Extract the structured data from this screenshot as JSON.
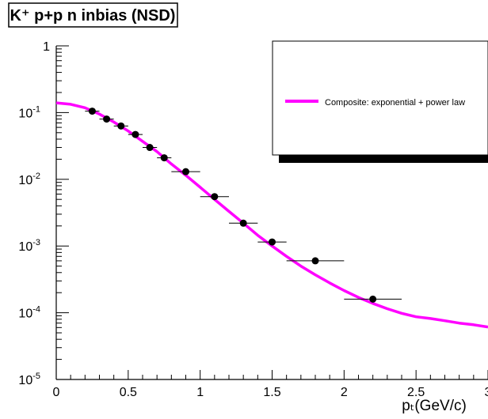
{
  "chart_data": {
    "type": "scatter",
    "title": "K⁺ p+p n inbias (NSD)",
    "xlabel": "pₜ(GeV/c)",
    "ylabel": "",
    "xlim": [
      0,
      3
    ],
    "ylim": [
      1e-05,
      1
    ],
    "y_scale": "log",
    "x_ticks": [
      0,
      0.5,
      1,
      1.5,
      2,
      2.5,
      3
    ],
    "x_tick_labels": [
      "0",
      "0.5",
      "1",
      "1.5",
      "2",
      "2.5",
      "3"
    ],
    "y_ticks": [
      1,
      0.1,
      0.01,
      0.001,
      0.0001,
      1e-05
    ],
    "y_tick_labels": [
      {
        "base": "1",
        "exp": ""
      },
      {
        "base": "10",
        "exp": "-1"
      },
      {
        "base": "10",
        "exp": "-2"
      },
      {
        "base": "10",
        "exp": "-3"
      },
      {
        "base": "10",
        "exp": "-4"
      },
      {
        "base": "10",
        "exp": "-5"
      }
    ],
    "grid": false,
    "legend_position": "top-right",
    "series": [
      {
        "name": "",
        "kind": "points",
        "color": "#000000",
        "x": [
          0.25,
          0.35,
          0.45,
          0.55,
          0.65,
          0.75,
          0.9,
          1.1,
          1.3,
          1.5,
          1.8,
          2.2
        ],
        "x_err": [
          0.05,
          0.05,
          0.05,
          0.05,
          0.05,
          0.05,
          0.1,
          0.1,
          0.1,
          0.1,
          0.2,
          0.2
        ],
        "y": [
          0.105,
          0.08,
          0.063,
          0.047,
          0.03,
          0.021,
          0.013,
          0.0055,
          0.0022,
          0.00115,
          0.0006,
          0.00016
        ]
      },
      {
        "name": "Composite: exponential + power law",
        "kind": "line",
        "color": "#ff00ff",
        "x": [
          0,
          0.1,
          0.2,
          0.3,
          0.4,
          0.5,
          0.6,
          0.7,
          0.8,
          0.9,
          1.0,
          1.1,
          1.2,
          1.3,
          1.4,
          1.5,
          1.6,
          1.7,
          1.8,
          1.9,
          2.0,
          2.1,
          2.2,
          2.3,
          2.4,
          2.5,
          2.6,
          2.7,
          2.8,
          2.9,
          3.0
        ],
        "y": [
          0.14,
          0.133,
          0.118,
          0.095,
          0.072,
          0.053,
          0.037,
          0.026,
          0.017,
          0.0115,
          0.0076,
          0.005,
          0.0033,
          0.0022,
          0.00145,
          0.001,
          0.0007,
          0.0005,
          0.00037,
          0.00028,
          0.000215,
          0.00017,
          0.000138,
          0.000115,
          9.8e-05,
          8.7e-05,
          8.2e-05,
          7.6e-05,
          7e-05,
          6.6e-05,
          6.1e-05
        ]
      }
    ]
  }
}
